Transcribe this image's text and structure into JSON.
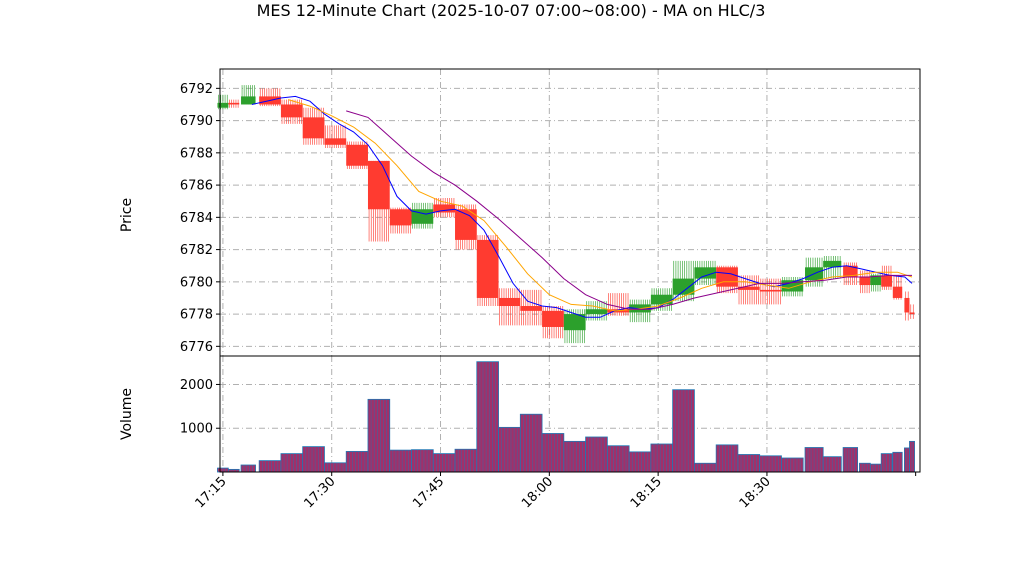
{
  "chart_data": {
    "title": "MES 12-Minute Chart (2025-10-07 07:00~08:00) - MA on HLC/3",
    "type": "candlestick",
    "price_panel": {
      "ylabel": "Price",
      "ylim": [
        6775.4,
        6793.2
      ],
      "yticks": [
        6776,
        6778,
        6780,
        6782,
        6784,
        6786,
        6788,
        6790,
        6792
      ],
      "grid": true
    },
    "volume_panel": {
      "ylabel": "Volume",
      "ylim": [
        0,
        2650
      ],
      "yticks": [
        1000,
        2000
      ],
      "grid": true
    },
    "xaxis": {
      "tick_labels": [
        "17:15",
        "17:30",
        "17:45",
        "18:00",
        "18:15",
        "18:30"
      ],
      "tick_minutes": [
        1035,
        1050,
        1065,
        1080,
        1095,
        1110
      ],
      "xlim_minutes": [
        1034.6,
        1131.1
      ]
    },
    "colors": {
      "up": "#2ca02c",
      "down": "#ff3b30",
      "volume_fill": "#a0306a",
      "volume_edge": "#1f77b4",
      "ma_fast": "#0000ff",
      "ma_mid": "#ffa500",
      "ma_slow": "#8b008b",
      "grid": "#b0b0b0"
    },
    "candles": [
      {
        "t": 1035.0,
        "o": 6790.8,
        "h": 6791.6,
        "l": 6790.7,
        "c": 6791.1,
        "v": 90
      },
      {
        "t": 1036.5,
        "o": 6791.1,
        "h": 6791.3,
        "l": 6790.8,
        "c": 6791.0,
        "v": 60
      },
      {
        "t": 1038.5,
        "o": 6791.0,
        "h": 6792.2,
        "l": 6791.0,
        "c": 6791.5,
        "v": 160
      },
      {
        "t": 1041.5,
        "o": 6791.5,
        "h": 6792.0,
        "l": 6790.9,
        "c": 6791.0,
        "v": 260
      },
      {
        "t": 1044.5,
        "o": 6791.0,
        "h": 6791.3,
        "l": 6789.8,
        "c": 6790.2,
        "v": 420
      },
      {
        "t": 1047.5,
        "o": 6790.2,
        "h": 6790.8,
        "l": 6788.5,
        "c": 6788.9,
        "v": 580
      },
      {
        "t": 1050.5,
        "o": 6788.9,
        "h": 6789.7,
        "l": 6788.3,
        "c": 6788.5,
        "v": 210
      },
      {
        "t": 1053.5,
        "o": 6788.5,
        "h": 6788.7,
        "l": 6787.0,
        "c": 6787.2,
        "v": 470
      },
      {
        "t": 1056.5,
        "o": 6787.5,
        "h": 6787.5,
        "l": 6782.5,
        "c": 6784.5,
        "v": 1660
      },
      {
        "t": 1059.5,
        "o": 6784.5,
        "h": 6784.6,
        "l": 6783.0,
        "c": 6783.5,
        "v": 500
      },
      {
        "t": 1062.5,
        "o": 6783.6,
        "h": 6784.9,
        "l": 6783.3,
        "c": 6784.5,
        "v": 510
      },
      {
        "t": 1065.5,
        "o": 6784.8,
        "h": 6785.2,
        "l": 6784.0,
        "c": 6784.3,
        "v": 420
      },
      {
        "t": 1068.5,
        "o": 6784.5,
        "h": 6784.8,
        "l": 6782.0,
        "c": 6782.6,
        "v": 520
      },
      {
        "t": 1071.5,
        "o": 6782.6,
        "h": 6782.9,
        "l": 6778.5,
        "c": 6779.0,
        "v": 2520
      },
      {
        "t": 1074.5,
        "o": 6779.0,
        "h": 6779.6,
        "l": 6777.3,
        "c": 6778.5,
        "v": 1020
      },
      {
        "t": 1077.5,
        "o": 6778.5,
        "h": 6779.5,
        "l": 6777.3,
        "c": 6778.2,
        "v": 1320
      },
      {
        "t": 1080.5,
        "o": 6778.2,
        "h": 6778.5,
        "l": 6776.5,
        "c": 6777.2,
        "v": 880
      },
      {
        "t": 1083.5,
        "o": 6777.0,
        "h": 6778.3,
        "l": 6776.2,
        "c": 6778.0,
        "v": 700
      },
      {
        "t": 1086.5,
        "o": 6778.0,
        "h": 6778.8,
        "l": 6777.6,
        "c": 6778.3,
        "v": 800
      },
      {
        "t": 1089.5,
        "o": 6778.3,
        "h": 6779.3,
        "l": 6777.9,
        "c": 6778.1,
        "v": 600
      },
      {
        "t": 1092.5,
        "o": 6778.1,
        "h": 6778.9,
        "l": 6777.5,
        "c": 6778.6,
        "v": 460
      },
      {
        "t": 1095.5,
        "o": 6778.6,
        "h": 6779.6,
        "l": 6778.2,
        "c": 6779.2,
        "v": 640
      },
      {
        "t": 1098.5,
        "o": 6779.2,
        "h": 6781.3,
        "l": 6778.8,
        "c": 6780.2,
        "v": 1880
      },
      {
        "t": 1101.5,
        "o": 6780.2,
        "h": 6781.3,
        "l": 6779.8,
        "c": 6780.9,
        "v": 200
      },
      {
        "t": 1104.5,
        "o": 6780.9,
        "h": 6781.0,
        "l": 6779.3,
        "c": 6779.7,
        "v": 620
      },
      {
        "t": 1107.5,
        "o": 6779.7,
        "h": 6780.4,
        "l": 6778.6,
        "c": 6779.5,
        "v": 400
      },
      {
        "t": 1110.5,
        "o": 6779.5,
        "h": 6780.2,
        "l": 6778.6,
        "c": 6779.4,
        "v": 370
      },
      {
        "t": 1113.5,
        "o": 6779.4,
        "h": 6780.3,
        "l": 6779.1,
        "c": 6780.1,
        "v": 320
      },
      {
        "t": 1116.5,
        "o": 6780.1,
        "h": 6781.5,
        "l": 6779.7,
        "c": 6780.9,
        "v": 560
      },
      {
        "t": 1119.0,
        "o": 6780.9,
        "h": 6781.6,
        "l": 6780.2,
        "c": 6781.3,
        "v": 350
      },
      {
        "t": 1121.5,
        "o": 6781.0,
        "h": 6781.2,
        "l": 6779.8,
        "c": 6780.3,
        "v": 560
      },
      {
        "t": 1123.5,
        "o": 6780.3,
        "h": 6780.7,
        "l": 6779.3,
        "c": 6779.8,
        "v": 200
      },
      {
        "t": 1125.0,
        "o": 6779.8,
        "h": 6780.5,
        "l": 6779.4,
        "c": 6780.4,
        "v": 180
      },
      {
        "t": 1126.5,
        "o": 6780.4,
        "h": 6781.0,
        "l": 6779.5,
        "c": 6779.7,
        "v": 420
      },
      {
        "t": 1128.0,
        "o": 6779.7,
        "h": 6780.4,
        "l": 6778.9,
        "c": 6779.0,
        "v": 450
      },
      {
        "t": 1129.3,
        "o": 6779.0,
        "h": 6779.4,
        "l": 6777.6,
        "c": 6778.1,
        "v": 550
      },
      {
        "t": 1130.0,
        "o": 6778.1,
        "h": 6778.6,
        "l": 6777.7,
        "c": 6778.0,
        "v": 700
      }
    ],
    "moving_averages": [
      {
        "key": "fast",
        "points": [
          [
            1039,
            6791.0
          ],
          [
            1041,
            6791.2
          ],
          [
            1043,
            6791.4
          ],
          [
            1045,
            6791.5
          ],
          [
            1047,
            6791.2
          ],
          [
            1049,
            6790.4
          ],
          [
            1051,
            6789.8
          ],
          [
            1053,
            6789.3
          ],
          [
            1055,
            6788.5
          ],
          [
            1057,
            6787.2
          ],
          [
            1059,
            6785.3
          ],
          [
            1061,
            6784.4
          ],
          [
            1063,
            6784.2
          ],
          [
            1065,
            6784.4
          ],
          [
            1067,
            6784.5
          ],
          [
            1069,
            6784.1
          ],
          [
            1071,
            6783.2
          ],
          [
            1073,
            6781.6
          ],
          [
            1075,
            6779.9
          ],
          [
            1077,
            6778.8
          ],
          [
            1079,
            6778.5
          ],
          [
            1081,
            6778.4
          ],
          [
            1083,
            6778.1
          ],
          [
            1085,
            6777.8
          ],
          [
            1087,
            6777.8
          ],
          [
            1089,
            6778.2
          ],
          [
            1091,
            6778.4
          ],
          [
            1093,
            6778.3
          ],
          [
            1095,
            6778.4
          ],
          [
            1097,
            6778.9
          ],
          [
            1099,
            6779.6
          ],
          [
            1101,
            6780.3
          ],
          [
            1103,
            6780.6
          ],
          [
            1105,
            6780.5
          ],
          [
            1107,
            6780.2
          ],
          [
            1109,
            6779.9
          ],
          [
            1111,
            6779.7
          ],
          [
            1113,
            6779.9
          ],
          [
            1115,
            6780.2
          ],
          [
            1117,
            6780.6
          ],
          [
            1119,
            6780.9
          ],
          [
            1121,
            6781.0
          ],
          [
            1123,
            6780.8
          ],
          [
            1125,
            6780.6
          ],
          [
            1127,
            6780.4
          ],
          [
            1129,
            6780.3
          ],
          [
            1130,
            6779.9
          ]
        ]
      },
      {
        "key": "mid",
        "points": [
          [
            1044,
            6791.3
          ],
          [
            1047,
            6790.9
          ],
          [
            1050,
            6790.3
          ],
          [
            1053,
            6789.6
          ],
          [
            1056,
            6788.6
          ],
          [
            1059,
            6787.2
          ],
          [
            1062,
            6785.6
          ],
          [
            1065,
            6785.0
          ],
          [
            1068,
            6784.7
          ],
          [
            1071,
            6783.8
          ],
          [
            1074,
            6782.2
          ],
          [
            1077,
            6780.5
          ],
          [
            1080,
            6779.2
          ],
          [
            1083,
            6778.6
          ],
          [
            1086,
            6778.5
          ],
          [
            1089,
            6778.2
          ],
          [
            1092,
            6778.3
          ],
          [
            1095,
            6778.5
          ],
          [
            1098,
            6779.0
          ],
          [
            1101,
            6779.6
          ],
          [
            1104,
            6780.0
          ],
          [
            1107,
            6780.0
          ],
          [
            1110,
            6779.8
          ],
          [
            1113,
            6779.6
          ],
          [
            1116,
            6780.0
          ],
          [
            1119,
            6780.3
          ],
          [
            1122,
            6780.4
          ],
          [
            1125,
            6780.6
          ],
          [
            1128,
            6780.6
          ],
          [
            1130,
            6780.3
          ]
        ]
      },
      {
        "key": "slow",
        "points": [
          [
            1052,
            6790.6
          ],
          [
            1055,
            6790.2
          ],
          [
            1058,
            6789.0
          ],
          [
            1061,
            6787.8
          ],
          [
            1064,
            6786.8
          ],
          [
            1067,
            6786.0
          ],
          [
            1070,
            6785.0
          ],
          [
            1073,
            6783.9
          ],
          [
            1076,
            6782.7
          ],
          [
            1079,
            6781.5
          ],
          [
            1082,
            6780.2
          ],
          [
            1085,
            6779.2
          ],
          [
            1088,
            6778.6
          ],
          [
            1091,
            6778.3
          ],
          [
            1094,
            6778.3
          ],
          [
            1097,
            6778.6
          ],
          [
            1100,
            6779.0
          ],
          [
            1103,
            6779.3
          ],
          [
            1106,
            6779.6
          ],
          [
            1109,
            6779.9
          ],
          [
            1112,
            6779.9
          ],
          [
            1115,
            6780.0
          ],
          [
            1118,
            6780.1
          ],
          [
            1121,
            6780.3
          ],
          [
            1124,
            6780.3
          ],
          [
            1127,
            6780.4
          ],
          [
            1130,
            6780.4
          ]
        ]
      }
    ]
  }
}
